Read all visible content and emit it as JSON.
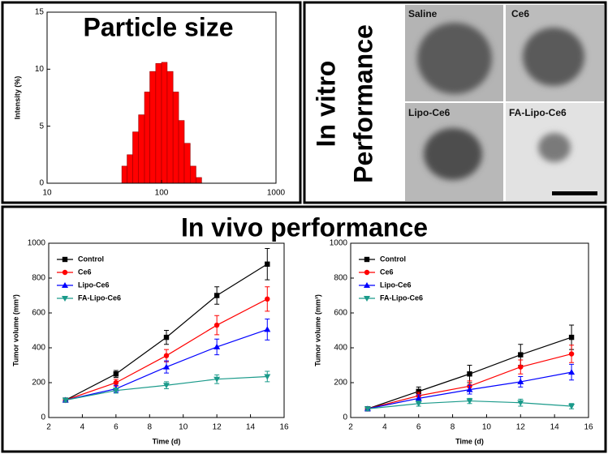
{
  "panels": {
    "particle": {
      "title": "Particle size"
    },
    "vitro": {
      "title_lines": [
        "In vitro",
        "Performance"
      ],
      "labels": [
        "Saline",
        "Ce6",
        "Lipo-Ce6",
        "FA-Lipo-Ce6"
      ]
    },
    "vivo": {
      "title": "In vivo performance"
    }
  },
  "chart_data": [
    {
      "type": "histogram",
      "ylabel": "Intensity (%)",
      "bins": [
        45,
        50,
        56,
        63,
        71,
        79,
        89,
        100,
        112,
        126,
        141,
        158,
        178,
        200,
        224
      ],
      "values": [
        1.5,
        2.5,
        4.5,
        6,
        8,
        9.8,
        10.5,
        10.6,
        9.8,
        8,
        5.5,
        3.5,
        1.5,
        0.5
      ],
      "color": "#ff0000",
      "log_x": true,
      "xlim": [
        10,
        1000
      ],
      "xticks": [
        10,
        100,
        1000
      ],
      "ylim": [
        0,
        15
      ],
      "yticks": [
        0,
        5,
        10,
        15
      ]
    },
    {
      "type": "line",
      "xlabel": "Time (d)",
      "ylabel": "Tumor volume (mm³)",
      "x": [
        3,
        6,
        9,
        12,
        15
      ],
      "series": [
        {
          "name": "Control",
          "color": "#000000",
          "marker": "square",
          "values": [
            100,
            250,
            460,
            700,
            880
          ],
          "errors": [
            10,
            20,
            40,
            50,
            90
          ]
        },
        {
          "name": "Ce6",
          "color": "#ff0000",
          "marker": "circle",
          "values": [
            100,
            200,
            355,
            530,
            680
          ],
          "errors": [
            10,
            20,
            35,
            55,
            70
          ]
        },
        {
          "name": "Lipo-Ce6",
          "color": "#0000ff",
          "marker": "triangle-up",
          "values": [
            100,
            165,
            290,
            405,
            505
          ],
          "errors": [
            10,
            20,
            35,
            45,
            60
          ]
        },
        {
          "name": "FA-Lipo-Ce6",
          "color": "#1a9a8a",
          "marker": "triangle-down",
          "values": [
            100,
            155,
            185,
            220,
            235
          ],
          "errors": [
            10,
            15,
            20,
            25,
            30
          ]
        }
      ],
      "xlim": [
        2,
        16
      ],
      "xticks": [
        2,
        4,
        6,
        8,
        10,
        12,
        14,
        16
      ],
      "ylim": [
        0,
        1000
      ],
      "yticks": [
        0,
        200,
        400,
        600,
        800,
        1000
      ],
      "legend": "upper left"
    },
    {
      "type": "line",
      "xlabel": "Time (d)",
      "ylabel": "Tumor volume (mm³)",
      "x": [
        3,
        6,
        9,
        12,
        15
      ],
      "series": [
        {
          "name": "Control",
          "color": "#000000",
          "marker": "square",
          "values": [
            50,
            150,
            250,
            360,
            460
          ],
          "errors": [
            10,
            25,
            50,
            60,
            70
          ]
        },
        {
          "name": "Ce6",
          "color": "#ff0000",
          "marker": "circle",
          "values": [
            50,
            125,
            180,
            290,
            365
          ],
          "errors": [
            10,
            20,
            30,
            40,
            50
          ]
        },
        {
          "name": "Lipo-Ce6",
          "color": "#0000ff",
          "marker": "triangle-up",
          "values": [
            50,
            110,
            160,
            205,
            260
          ],
          "errors": [
            10,
            20,
            25,
            30,
            45
          ]
        },
        {
          "name": "FA-Lipo-Ce6",
          "color": "#1a9a8a",
          "marker": "triangle-down",
          "values": [
            50,
            80,
            95,
            85,
            65
          ],
          "errors": [
            10,
            15,
            15,
            20,
            15
          ]
        }
      ],
      "xlim": [
        2,
        16
      ],
      "xticks": [
        2,
        4,
        6,
        8,
        10,
        12,
        14,
        16
      ],
      "ylim": [
        0,
        1000
      ],
      "yticks": [
        0,
        200,
        400,
        600,
        800,
        1000
      ],
      "legend": "upper left"
    }
  ]
}
